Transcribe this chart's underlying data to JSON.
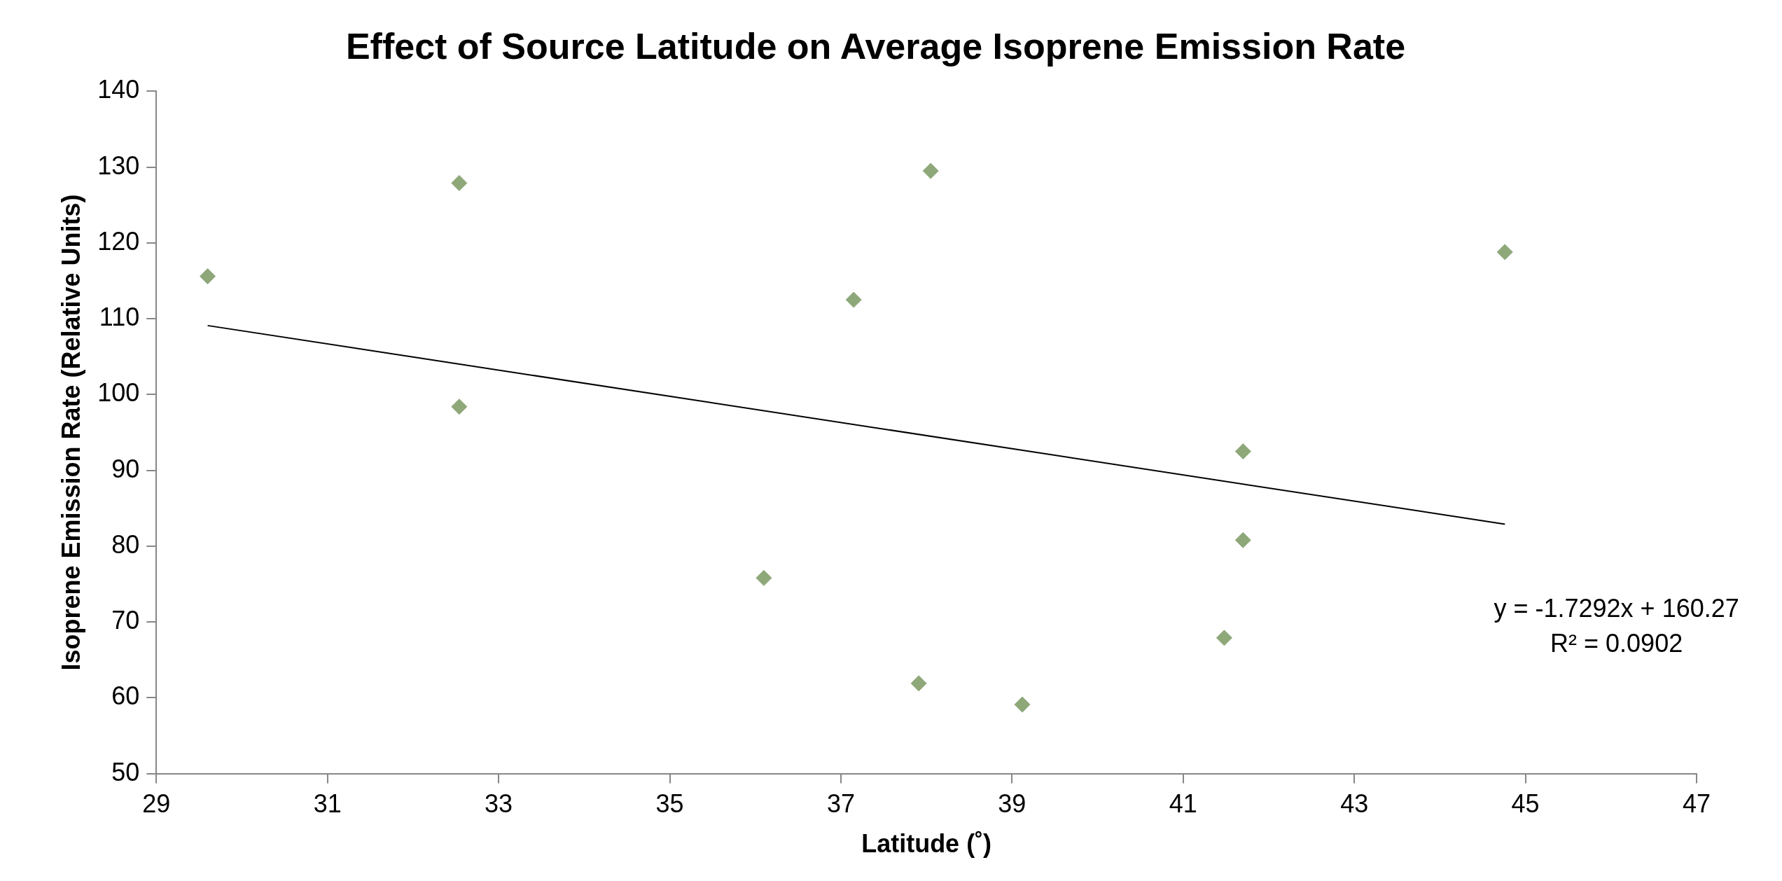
{
  "chart_data": {
    "type": "scatter",
    "title": "Effect of Source Latitude on Average Isoprene Emission Rate",
    "xlabel": "Latitude (˚)",
    "ylabel": "Isoprene Emission Rate (Relative Units)",
    "xlim": [
      29,
      47
    ],
    "xticks": [
      29,
      31,
      33,
      35,
      37,
      39,
      41,
      43,
      45,
      47
    ],
    "ylim": [
      50,
      140
    ],
    "yticks": [
      50,
      60,
      70,
      80,
      90,
      100,
      110,
      120,
      130,
      140
    ],
    "grid": false,
    "legend": false,
    "marker": "diamond",
    "annotations": [
      "y = -1.7292x + 160.27",
      "R² = 0.0902"
    ],
    "series": [
      {
        "type": "scatter",
        "color": "#8ea87a",
        "x": [
          29.6,
          32.54,
          32.54,
          36.1,
          37.15,
          37.91,
          38.05,
          39.12,
          41.48,
          41.7,
          41.7,
          44.76
        ],
        "values": [
          115.6,
          127.9,
          98.4,
          75.8,
          112.5,
          61.9,
          129.5,
          59.1,
          67.9,
          92.5,
          80.8,
          118.8
        ]
      },
      {
        "type": "line",
        "color": "#000000",
        "line_style": "solid",
        "marker": "none",
        "x": [
          29.6,
          44.76
        ],
        "values": [
          109.1,
          82.9
        ]
      }
    ]
  }
}
